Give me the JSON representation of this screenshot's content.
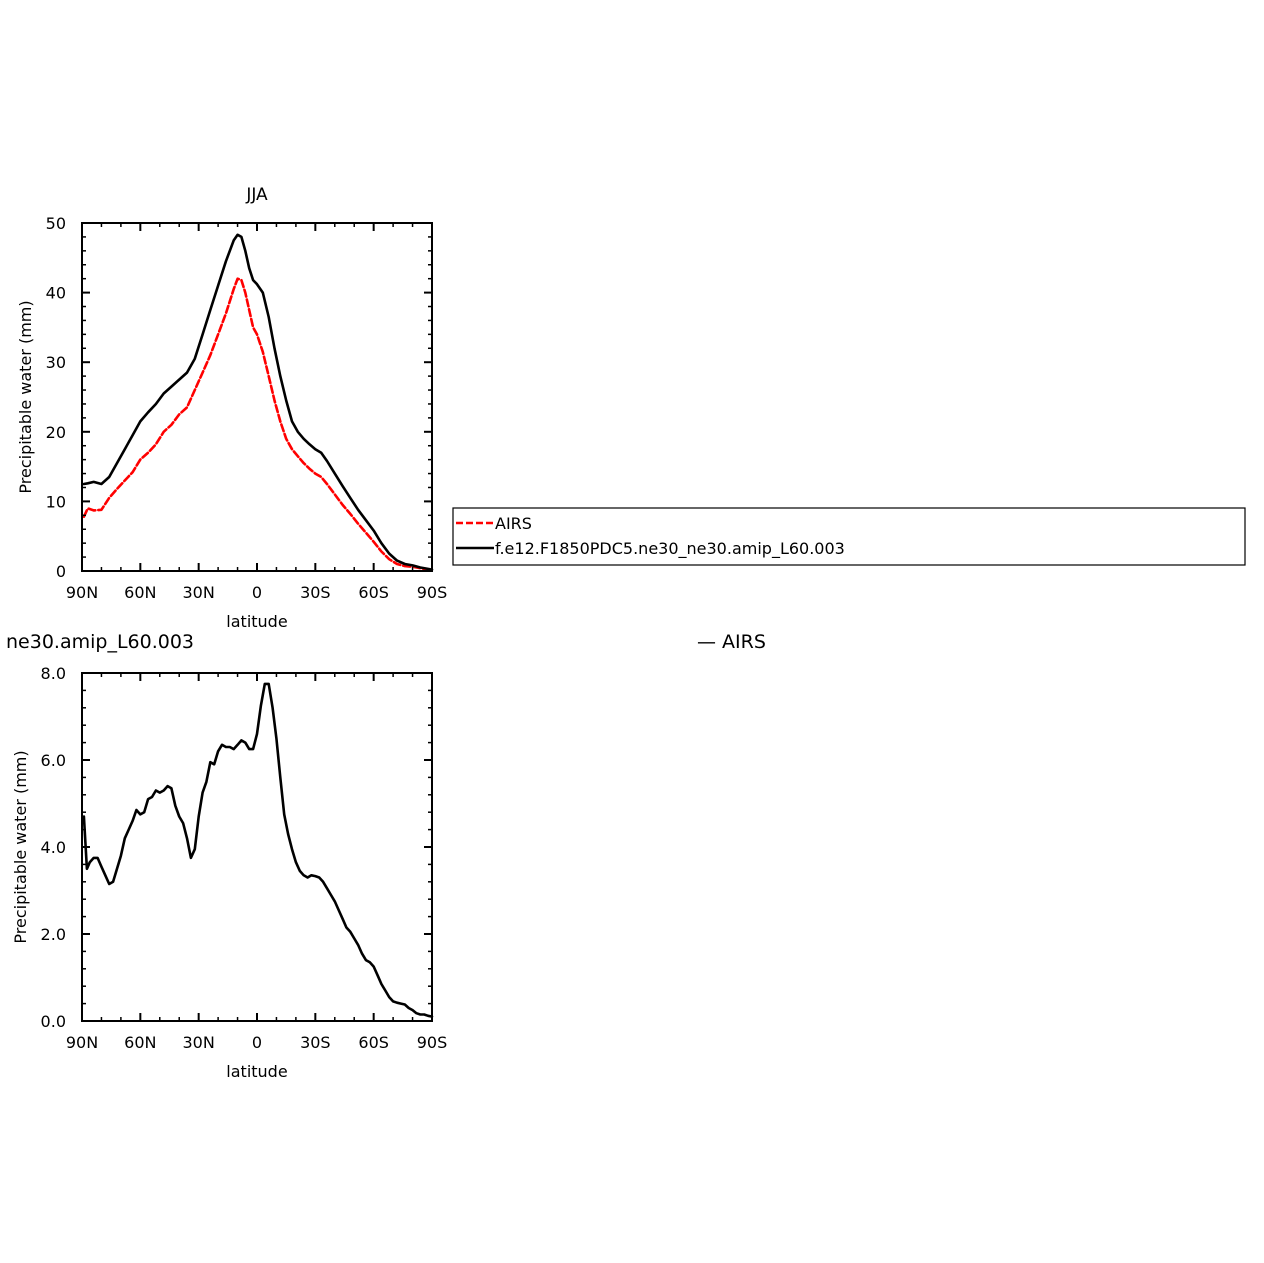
{
  "chart_data": [
    {
      "type": "line",
      "title": "JJA",
      "xlabel": "latitude",
      "ylabel": "Precipitable water (mm)",
      "xlim": [
        -90,
        90
      ],
      "ylim": [
        0,
        50
      ],
      "x_ticks": [
        -90,
        -60,
        -30,
        0,
        30,
        60,
        90
      ],
      "x_tick_labels": [
        "90N",
        "60N",
        "30N",
        "0",
        "30S",
        "60S",
        "90S"
      ],
      "y_ticks": [
        0,
        10,
        20,
        30,
        40,
        50
      ],
      "y_tick_labels": [
        "0",
        "10",
        "20",
        "30",
        "40",
        "50"
      ],
      "series": [
        {
          "name": "AIRS",
          "color": "#ff0000",
          "dash": "dashed",
          "x": [
            -89,
            -87,
            -84,
            -80,
            -76,
            -72,
            -68,
            -64,
            -60,
            -56,
            -52,
            -48,
            -44,
            -40,
            -36,
            -32,
            -28,
            -24,
            -20,
            -16,
            -12,
            -10,
            -8,
            -6,
            -4,
            -2,
            0,
            3,
            6,
            9,
            12,
            15,
            18,
            21,
            24,
            27,
            30,
            33,
            36,
            40,
            44,
            48,
            52,
            56,
            60,
            64,
            68,
            72,
            76,
            80,
            84,
            88,
            90
          ],
          "y": [
            7.8,
            9.0,
            8.7,
            8.8,
            10.5,
            11.8,
            13.0,
            14.2,
            16.0,
            17.0,
            18.2,
            20.0,
            21.0,
            22.5,
            23.5,
            26.0,
            28.5,
            31.0,
            34.0,
            37.0,
            40.5,
            42.0,
            41.8,
            40.0,
            37.5,
            35.0,
            34.0,
            31.5,
            28.0,
            24.5,
            21.5,
            19.0,
            17.5,
            16.5,
            15.5,
            14.7,
            14.0,
            13.5,
            12.5,
            11.0,
            9.5,
            8.2,
            6.8,
            5.5,
            4.2,
            2.8,
            1.7,
            1.0,
            0.7,
            0.6,
            0.4,
            0.2,
            0.1
          ]
        },
        {
          "name": "f.e12.F1850PDC5.ne30_ne30.amip_L60.003",
          "color": "#000000",
          "dash": "solid",
          "x": [
            -89,
            -87,
            -84,
            -80,
            -76,
            -72,
            -68,
            -64,
            -60,
            -56,
            -52,
            -48,
            -44,
            -40,
            -36,
            -32,
            -28,
            -24,
            -20,
            -16,
            -12,
            -10,
            -8,
            -6,
            -4,
            -2,
            0,
            3,
            6,
            9,
            12,
            15,
            18,
            21,
            24,
            27,
            30,
            33,
            36,
            40,
            44,
            48,
            52,
            56,
            60,
            64,
            68,
            72,
            76,
            80,
            84,
            88,
            90
          ],
          "y": [
            12.5,
            12.6,
            12.8,
            12.5,
            13.5,
            15.5,
            17.5,
            19.5,
            21.5,
            22.8,
            24.0,
            25.5,
            26.5,
            27.5,
            28.5,
            30.5,
            34.0,
            37.5,
            41.0,
            44.5,
            47.5,
            48.3,
            48.0,
            46.0,
            43.5,
            41.8,
            41.2,
            40.0,
            36.5,
            32.0,
            28.0,
            24.5,
            21.5,
            20.0,
            19.0,
            18.2,
            17.5,
            17.0,
            15.8,
            14.0,
            12.2,
            10.5,
            8.8,
            7.3,
            5.8,
            4.0,
            2.5,
            1.5,
            1.0,
            0.8,
            0.5,
            0.3,
            0.2
          ]
        }
      ]
    },
    {
      "type": "line",
      "title": "ne30.amip_L60.003",
      "title_right": "— AIRS",
      "xlabel": "latitude",
      "ylabel": "Precipitable water (mm)",
      "xlim": [
        -90,
        90
      ],
      "ylim": [
        0,
        8
      ],
      "x_ticks": [
        -90,
        -60,
        -30,
        0,
        30,
        60,
        90
      ],
      "x_tick_labels": [
        "90N",
        "60N",
        "30N",
        "0",
        "30S",
        "60S",
        "90S"
      ],
      "y_ticks": [
        0,
        2,
        4,
        6,
        8
      ],
      "y_tick_labels": [
        "0.0",
        "2.0",
        "4.0",
        "6.0",
        "8.0"
      ],
      "series": [
        {
          "color": "#000000",
          "dash": "solid",
          "x": [
            -89,
            -87.5,
            -86,
            -84,
            -82,
            -80,
            -78,
            -76,
            -74,
            -72,
            -70,
            -68,
            -66,
            -64,
            -62,
            -60,
            -58,
            -56,
            -54,
            -52,
            -50,
            -48,
            -46,
            -44,
            -42,
            -40,
            -38,
            -36,
            -34,
            -32,
            -30,
            -28,
            -26,
            -24,
            -22,
            -20,
            -18,
            -16,
            -14,
            -12,
            -10,
            -8,
            -6,
            -4,
            -2,
            0,
            2,
            4,
            6,
            8,
            10,
            12,
            14,
            16,
            18,
            20,
            22,
            24,
            26,
            28,
            30,
            32,
            34,
            36,
            38,
            40,
            42,
            44,
            46,
            48,
            50,
            52,
            54,
            56,
            58,
            60,
            62,
            64,
            66,
            68,
            70,
            72,
            74,
            76,
            78,
            80,
            82,
            84,
            86,
            88,
            90
          ],
          "y": [
            4.7,
            3.5,
            3.65,
            3.75,
            3.75,
            3.55,
            3.35,
            3.15,
            3.2,
            3.5,
            3.8,
            4.2,
            4.4,
            4.6,
            4.85,
            4.75,
            4.8,
            5.1,
            5.15,
            5.3,
            5.25,
            5.3,
            5.4,
            5.35,
            4.95,
            4.7,
            4.55,
            4.2,
            3.75,
            3.95,
            4.7,
            5.25,
            5.5,
            5.95,
            5.9,
            6.2,
            6.35,
            6.3,
            6.3,
            6.25,
            6.35,
            6.45,
            6.4,
            6.25,
            6.25,
            6.6,
            7.25,
            7.75,
            7.75,
            7.2,
            6.5,
            5.6,
            4.75,
            4.3,
            3.95,
            3.65,
            3.45,
            3.35,
            3.3,
            3.35,
            3.33,
            3.3,
            3.2,
            3.05,
            2.9,
            2.75,
            2.55,
            2.35,
            2.15,
            2.05,
            1.9,
            1.75,
            1.55,
            1.4,
            1.35,
            1.25,
            1.05,
            0.85,
            0.7,
            0.55,
            0.45,
            0.42,
            0.4,
            0.38,
            0.3,
            0.25,
            0.18,
            0.15,
            0.15,
            0.12,
            0.1
          ]
        }
      ]
    }
  ]
}
